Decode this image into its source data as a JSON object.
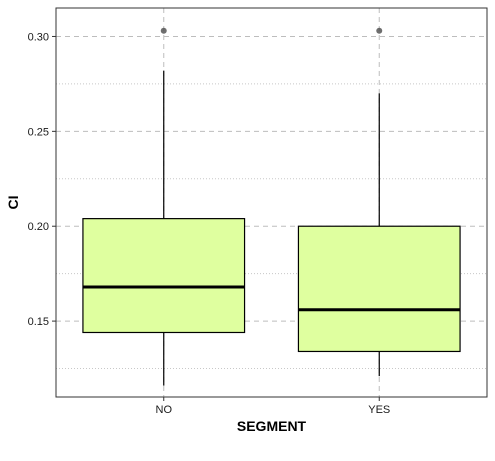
{
  "chart_data": {
    "type": "box",
    "xlabel": "SEGMENT",
    "ylabel": "CI",
    "ylim": [
      0.11,
      0.315
    ],
    "yticks": [
      0.15,
      0.2,
      0.25,
      0.3
    ],
    "ytick_labels": [
      "0.15",
      "0.20",
      "0.25",
      "0.30"
    ],
    "yminor": [
      0.125,
      0.175,
      0.225,
      0.275
    ],
    "grid": true,
    "box_fill": "#dfff9f",
    "categories": [
      "NO",
      "YES"
    ],
    "boxes": [
      {
        "category": "NO",
        "whisker_low": 0.116,
        "q1": 0.144,
        "median": 0.168,
        "q3": 0.204,
        "whisker_high": 0.282,
        "outliers": [
          0.303
        ]
      },
      {
        "category": "YES",
        "whisker_low": 0.121,
        "q1": 0.134,
        "median": 0.156,
        "q3": 0.2,
        "whisker_high": 0.27,
        "outliers": [
          0.303
        ]
      }
    ]
  }
}
